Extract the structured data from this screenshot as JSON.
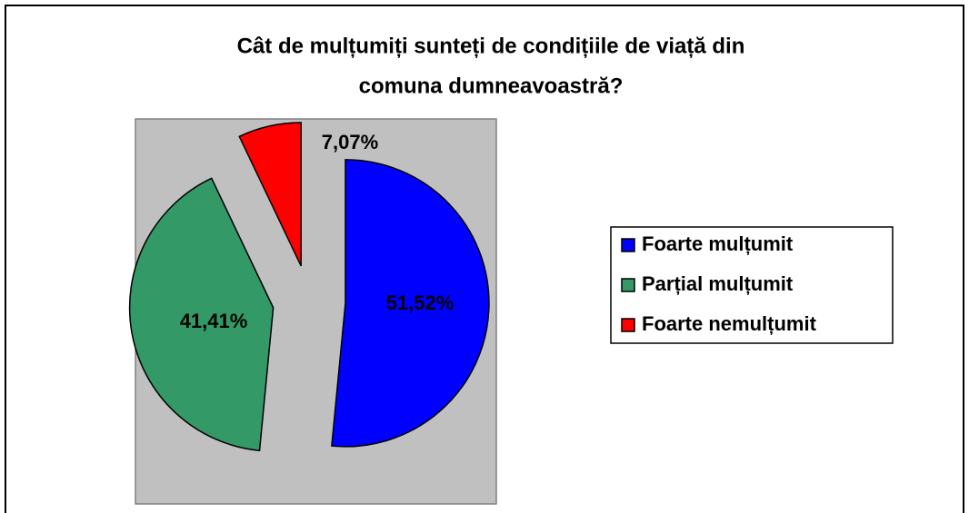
{
  "chart_data": {
    "type": "pie",
    "title": [
      "Cât de mulțumiți sunteți de condițiile de viață din",
      "comuna dumneavoastră?"
    ],
    "categories": [
      "Foarte mulțumit",
      "Parțial mulțumit",
      "Foarte nemulțumit"
    ],
    "values": [
      51.52,
      41.41,
      7.07
    ],
    "value_labels": [
      "51,52%",
      "41,41%",
      "7,07%"
    ],
    "colors": [
      "#0000ff",
      "#339966",
      "#ff0000"
    ],
    "legend": "right"
  }
}
